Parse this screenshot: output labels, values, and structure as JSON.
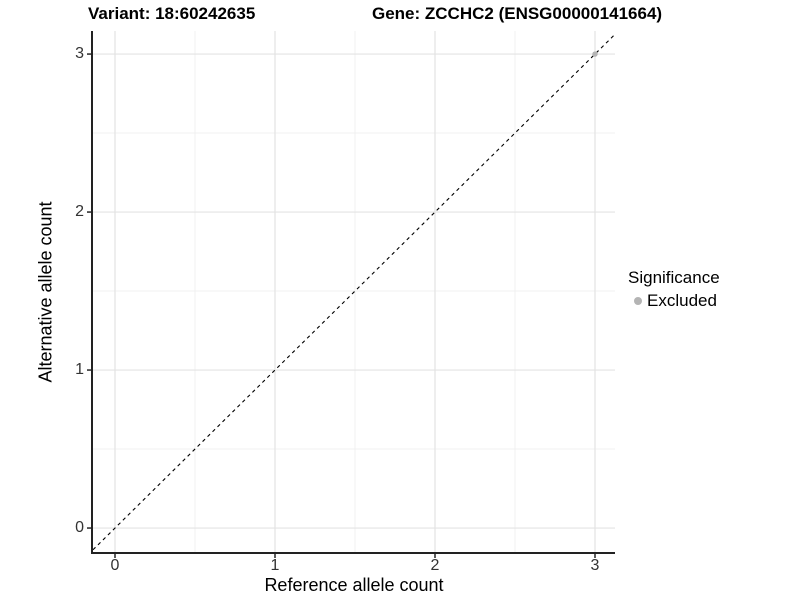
{
  "chart_data": {
    "type": "scatter",
    "title_left": "Variant: 18:60242635",
    "title_right": "Gene: ZCCHC2 (ENSG00000141664)",
    "xlabel": "Reference allele count",
    "ylabel": "Alternative allele count",
    "xlim": [
      -0.1375,
      3.125
    ],
    "ylim": [
      -0.158,
      3.146
    ],
    "x_ticks": [
      "0",
      "1",
      "2",
      "3"
    ],
    "y_ticks": [
      "0",
      "1",
      "2",
      "3"
    ],
    "x_tick_values": [
      0,
      1,
      2,
      3
    ],
    "y_tick_values": [
      0,
      1,
      2,
      3
    ],
    "minor_grid_values": [
      0.5,
      1.5,
      2.5
    ],
    "grid": "on",
    "identity_line": {
      "style": "dashed",
      "slope": 1,
      "intercept": 0,
      "color": "#000000"
    },
    "series": [
      {
        "name": "Excluded",
        "color": "#b4b4b4",
        "points": [
          [
            3,
            3
          ]
        ]
      }
    ],
    "legend": {
      "position": "right",
      "title": "Significance",
      "entries": [
        {
          "label": "Excluded",
          "color": "#b4b4b4"
        }
      ]
    },
    "colors": {
      "grid_major": "#e3e3e3",
      "grid_minor": "#f1f1f1",
      "axis_line": "#222222",
      "tick_mark": "#333333",
      "point": "#b4b4b4",
      "background": "#ffffff"
    }
  }
}
